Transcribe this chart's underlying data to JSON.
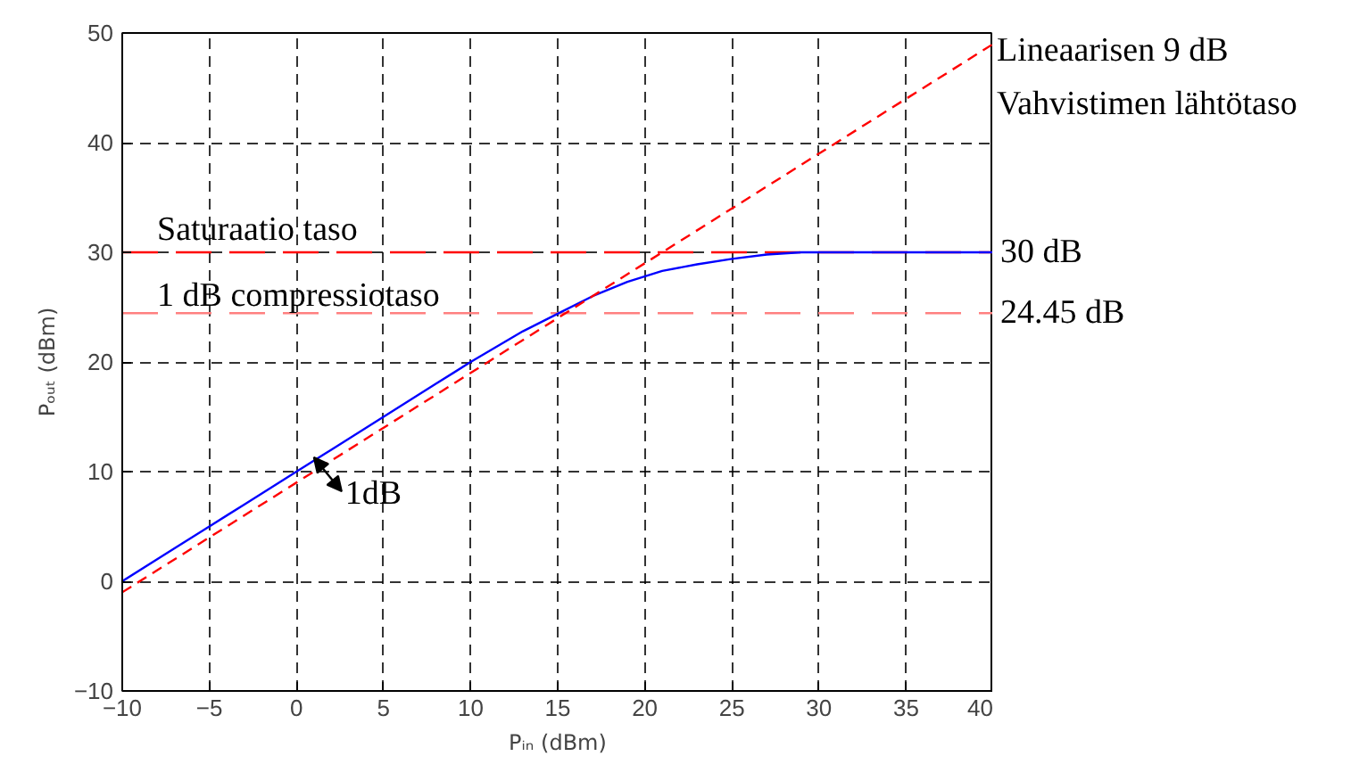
{
  "chart_data": {
    "type": "line",
    "xlabel": "Pᵢₙ (dBm)",
    "ylabel": "Pₒᵤₜ (dBm)",
    "xlim": [
      -10,
      40
    ],
    "ylim": [
      -10,
      50
    ],
    "xticks": [
      -10,
      -5,
      0,
      5,
      10,
      15,
      20,
      25,
      30,
      35,
      40
    ],
    "yticks": [
      -10,
      0,
      10,
      20,
      30,
      40,
      50
    ],
    "grid": true,
    "marker": "none",
    "series": [
      {
        "color": "#0000ff",
        "line_style": "solid",
        "x": [
          -10,
          -7,
          -5,
          -3,
          0,
          2,
          5,
          8,
          10,
          13,
          15,
          17,
          19,
          21,
          23,
          25,
          27,
          29,
          40
        ],
        "values": [
          0,
          3,
          5,
          7,
          10,
          12,
          15,
          18,
          20,
          22.8,
          24.4,
          26,
          27.3,
          28.3,
          28.9,
          29.4,
          29.8,
          30,
          30
        ]
      },
      {
        "color": "#ff0000",
        "line_style": "dashed",
        "x": [
          -10,
          40
        ],
        "values": [
          -1,
          49
        ]
      }
    ],
    "ref_lines": [
      {
        "axis": "y",
        "value": 30,
        "label": "30 dB",
        "color": "#ff0000",
        "line_style": "dashed"
      },
      {
        "axis": "y",
        "value": 24.45,
        "label": "24.45 dB",
        "color": "#ff8080",
        "line_style": "dashed"
      }
    ],
    "annotations": [
      "Saturaatio taso",
      "1 dB compressiotaso",
      "Lineaarisen  9 dB",
      "Vahvistimen lähtötaso",
      "1dB"
    ]
  }
}
